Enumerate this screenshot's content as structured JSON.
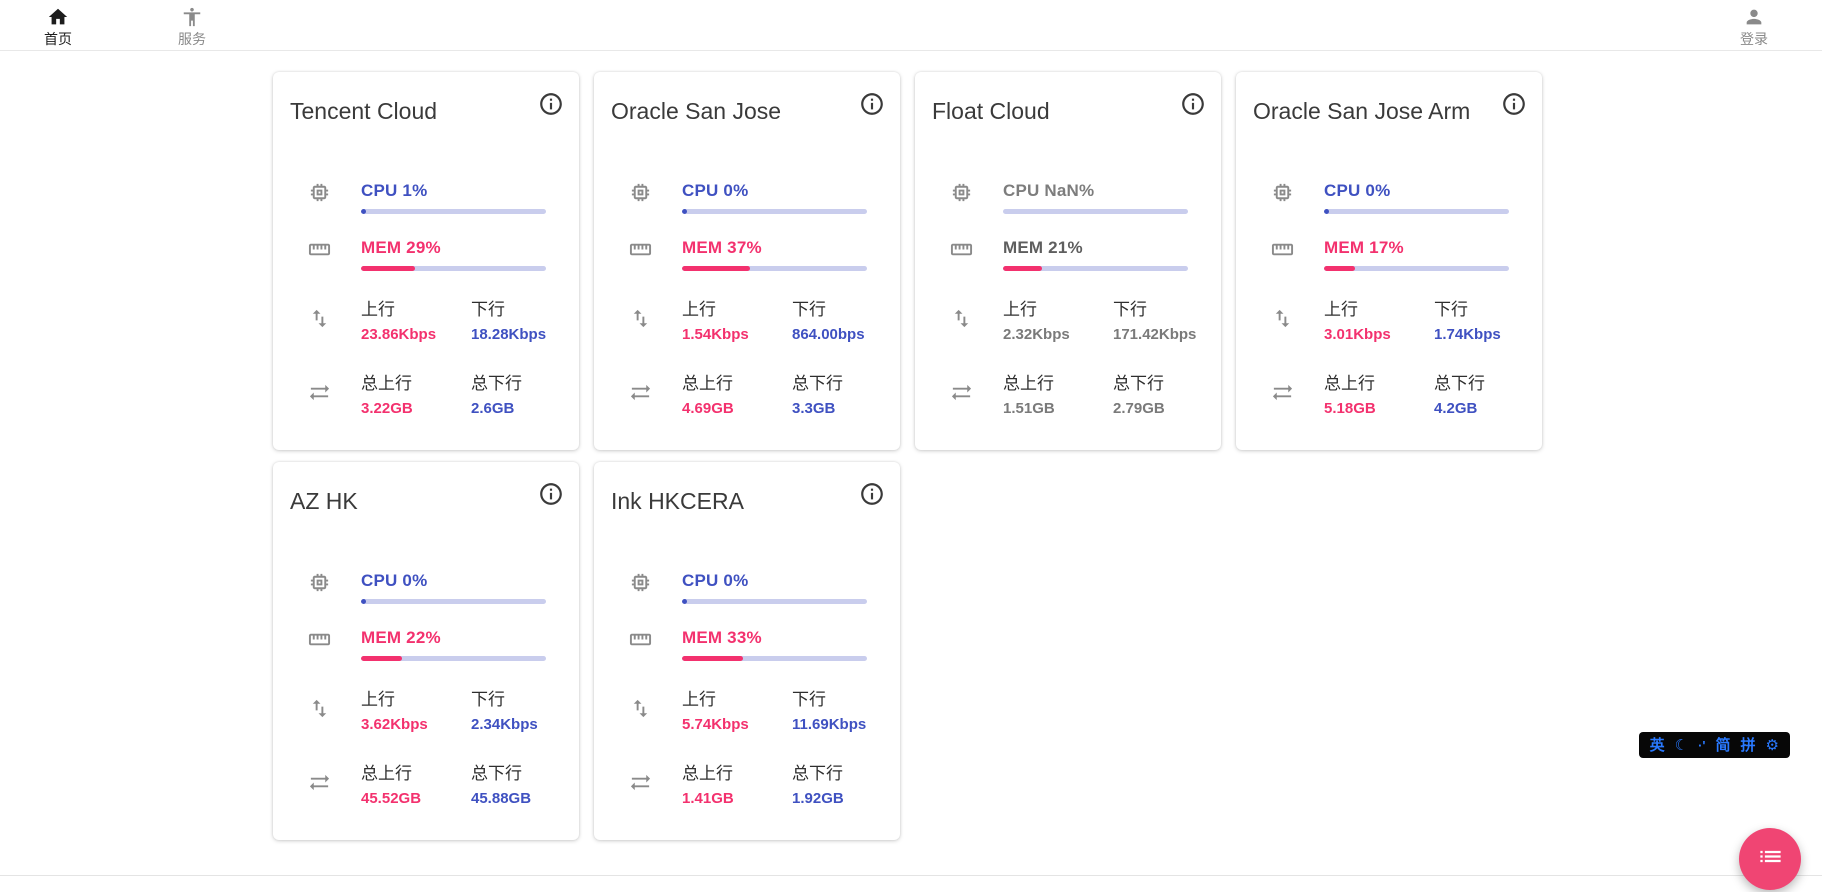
{
  "nav": {
    "items": [
      {
        "label": "首页",
        "icon": "home-icon",
        "active": true
      },
      {
        "label": "服务",
        "icon": "services-person-icon",
        "active": false
      }
    ],
    "login": {
      "label": "登录",
      "icon": "user-icon"
    }
  },
  "card_labels": {
    "up_label": "上行",
    "down_label": "下行",
    "total_up_label": "总上行",
    "total_down_label": "总下行"
  },
  "cards": [
    {
      "name": "Tencent Cloud",
      "cpu_text": "CPU 1%",
      "cpu_pct": 1,
      "mem_text": "MEM 29%",
      "mem_pct": 29,
      "up_value": "23.86Kbps",
      "down_value": "18.28Kbps",
      "total_up_value": "3.22GB",
      "total_down_value": "2.6GB",
      "offline": false
    },
    {
      "name": "Oracle San Jose",
      "cpu_text": "CPU 0%",
      "cpu_pct": 0,
      "mem_text": "MEM 37%",
      "mem_pct": 37,
      "up_value": "1.54Kbps",
      "down_value": "864.00bps",
      "total_up_value": "4.69GB",
      "total_down_value": "3.3GB",
      "offline": false
    },
    {
      "name": "Float Cloud",
      "cpu_text": "CPU NaN%",
      "cpu_pct": null,
      "mem_text": "MEM 21%",
      "mem_pct": 21,
      "up_value": "2.32Kbps",
      "down_value": "171.42Kbps",
      "total_up_value": "1.51GB",
      "total_down_value": "2.79GB",
      "offline": true
    },
    {
      "name": "Oracle San Jose Arm",
      "cpu_text": "CPU 0%",
      "cpu_pct": 0,
      "mem_text": "MEM 17%",
      "mem_pct": 17,
      "up_value": "3.01Kbps",
      "down_value": "1.74Kbps",
      "total_up_value": "5.18GB",
      "total_down_value": "4.2GB",
      "offline": false
    },
    {
      "name": "AZ HK",
      "cpu_text": "CPU 0%",
      "cpu_pct": 0,
      "mem_text": "MEM 22%",
      "mem_pct": 22,
      "up_value": "3.62Kbps",
      "down_value": "2.34Kbps",
      "total_up_value": "45.52GB",
      "total_down_value": "45.88GB",
      "offline": false
    },
    {
      "name": "Ink HKCERA",
      "cpu_text": "CPU 0%",
      "cpu_pct": 0,
      "mem_text": "MEM 33%",
      "mem_pct": 33,
      "up_value": "5.74Kbps",
      "down_value": "11.69Kbps",
      "total_up_value": "1.41GB",
      "total_down_value": "1.92GB",
      "offline": false
    }
  ],
  "ime_bar": {
    "items": [
      {
        "glyph": "英",
        "name": "ime-language-indicator",
        "small": false
      },
      {
        "glyph": "☾",
        "name": "ime-moon-icon",
        "small": false
      },
      {
        "glyph": "·'",
        "name": "ime-punctuation-icon",
        "small": true
      },
      {
        "glyph": "简",
        "name": "ime-simplified-indicator",
        "small": false
      },
      {
        "glyph": "拼",
        "name": "ime-pinyin-indicator",
        "small": false
      },
      {
        "glyph": "⚙",
        "name": "ime-settings-gear-icon",
        "small": false
      }
    ]
  },
  "colors": {
    "accent_blue": "#3F51C1",
    "accent_pink": "#F3316E",
    "progress_track": "#C9CDED",
    "offline_value_gray": "#7a7a7a",
    "fab_pink": "#F04573",
    "ime_blue": "#2979FF"
  }
}
